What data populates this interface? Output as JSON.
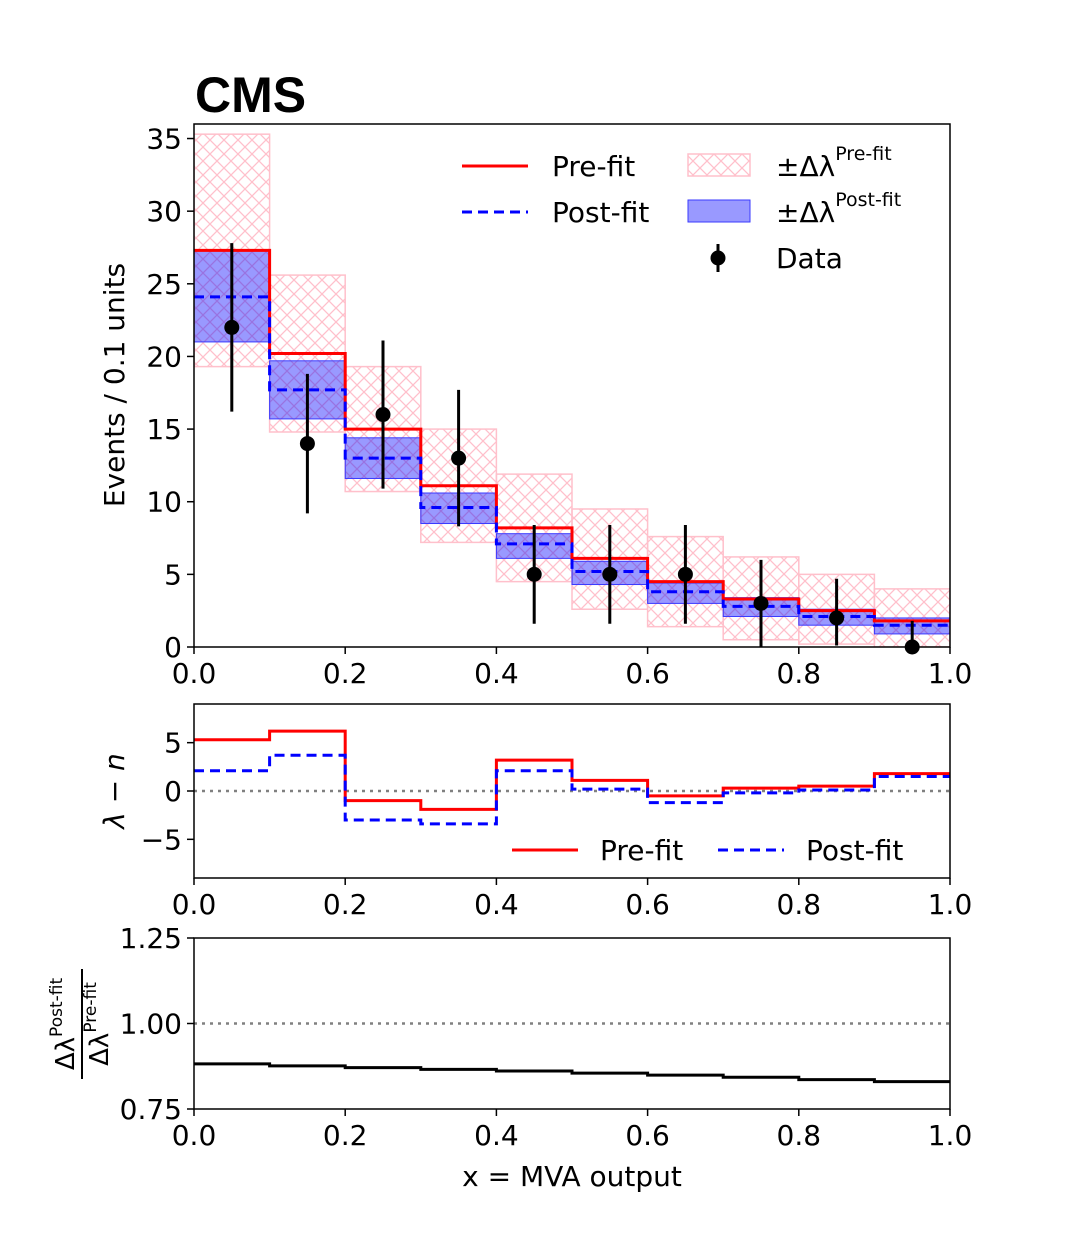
{
  "experiment_label": "CMS",
  "chart_data": [
    {
      "type": "histogram",
      "panel": "main",
      "ylabel": "Events / 0.1 units",
      "xlim": [
        0.0,
        1.0
      ],
      "ylim": [
        0,
        36
      ],
      "xticks": [
        "0.0",
        "0.2",
        "0.4",
        "0.6",
        "0.8",
        "1.0"
      ],
      "yticks": [
        "0",
        "5",
        "10",
        "15",
        "20",
        "25",
        "30",
        "35"
      ],
      "bin_edges": [
        0.0,
        0.1,
        0.2,
        0.3,
        0.4,
        0.5,
        0.6,
        0.7,
        0.8,
        0.9,
        1.0
      ],
      "legend_position": "upper-right",
      "legend": {
        "prefit": "Pre-fit",
        "postfit": "Post-fit",
        "data": "Data",
        "band_prefix": "±Δλ",
        "prefit_band_sup": "Pre-fit",
        "postfit_band_sup": "Post-fit"
      },
      "series": [
        {
          "name": "Pre-fit",
          "style": "solid",
          "color": "#ff0000",
          "values": [
            27.3,
            20.2,
            15.0,
            11.1,
            8.2,
            6.1,
            4.5,
            3.3,
            2.5,
            1.8
          ]
        },
        {
          "name": "Post-fit",
          "style": "dashed",
          "color": "#0000ff",
          "values": [
            24.1,
            17.7,
            13.0,
            9.6,
            7.1,
            5.2,
            3.8,
            2.8,
            2.1,
            1.5
          ]
        }
      ],
      "prefit_band": {
        "color": "#ffc0cb",
        "hatch": "cross",
        "low": [
          19.3,
          14.8,
          10.7,
          7.2,
          4.5,
          2.6,
          1.4,
          0.5,
          0.2,
          0.0
        ],
        "high": [
          35.3,
          25.6,
          19.3,
          15.0,
          11.9,
          9.5,
          7.6,
          6.2,
          5.0,
          4.0
        ]
      },
      "postfit_band": {
        "color": "#0000ff",
        "alpha": 0.4,
        "low": [
          21.0,
          15.7,
          11.6,
          8.5,
          6.1,
          4.3,
          3.0,
          2.1,
          1.5,
          0.9
        ],
        "high": [
          27.3,
          19.7,
          14.4,
          10.6,
          7.8,
          5.9,
          4.4,
          3.4,
          2.6,
          2.0
        ]
      },
      "data_points": {
        "color": "#000000",
        "x": [
          0.05,
          0.15,
          0.25,
          0.35,
          0.45,
          0.55,
          0.65,
          0.75,
          0.85,
          0.95
        ],
        "y": [
          22,
          14,
          16,
          13,
          5,
          5,
          5,
          3,
          2,
          0
        ],
        "err_low": [
          5.8,
          4.8,
          5.1,
          4.7,
          3.4,
          3.4,
          3.4,
          3.0,
          1.9,
          0
        ],
        "err_high": [
          5.8,
          4.8,
          5.1,
          4.7,
          3.4,
          3.4,
          3.4,
          3.0,
          2.7,
          1.8
        ]
      }
    },
    {
      "type": "line",
      "panel": "residual",
      "ylabel": "λ − n",
      "xlim": [
        0.0,
        1.0
      ],
      "ylim": [
        -6,
        6
      ],
      "xticks": [
        "0.0",
        "0.2",
        "0.4",
        "0.6",
        "0.8",
        "1.0"
      ],
      "yticks": [
        "5",
        "0",
        "−5"
      ],
      "bin_edges": [
        0.0,
        0.1,
        0.2,
        0.3,
        0.4,
        0.5,
        0.6,
        0.7,
        0.8,
        0.9,
        1.0
      ],
      "legend_position": "lower-right",
      "reference_line": 0,
      "series": [
        {
          "name": "Pre-fit",
          "style": "solid",
          "color": "#ff0000",
          "values": [
            5.3,
            6.2,
            -1.0,
            -1.9,
            3.2,
            1.1,
            -0.5,
            0.3,
            0.5,
            1.8
          ]
        },
        {
          "name": "Post-fit",
          "style": "dashed",
          "color": "#0000ff",
          "values": [
            2.1,
            3.7,
            -3.0,
            -3.4,
            2.1,
            0.2,
            -1.2,
            -0.2,
            0.1,
            1.5
          ]
        }
      ]
    },
    {
      "type": "line",
      "panel": "ratio",
      "ylabel_numerator": "Δλ",
      "ylabel_numerator_sup": "Post-fit",
      "ylabel_denominator": "Δλ",
      "ylabel_denominator_sup": "Pre-fit",
      "xlabel": "x = MVA output",
      "xlim": [
        0.0,
        1.0
      ],
      "ylim": [
        0.75,
        1.25
      ],
      "xticks": [
        "0.0",
        "0.2",
        "0.4",
        "0.6",
        "0.8",
        "1.0"
      ],
      "yticks": [
        "0.75",
        "1.00",
        "1.25"
      ],
      "bin_edges": [
        0.0,
        0.1,
        0.2,
        0.3,
        0.4,
        0.5,
        0.6,
        0.7,
        0.8,
        0.9,
        1.0
      ],
      "reference_line": 1.0,
      "series": [
        {
          "color": "#000000",
          "values": [
            0.882,
            0.876,
            0.871,
            0.866,
            0.861,
            0.855,
            0.849,
            0.843,
            0.836,
            0.83
          ]
        }
      ]
    }
  ]
}
